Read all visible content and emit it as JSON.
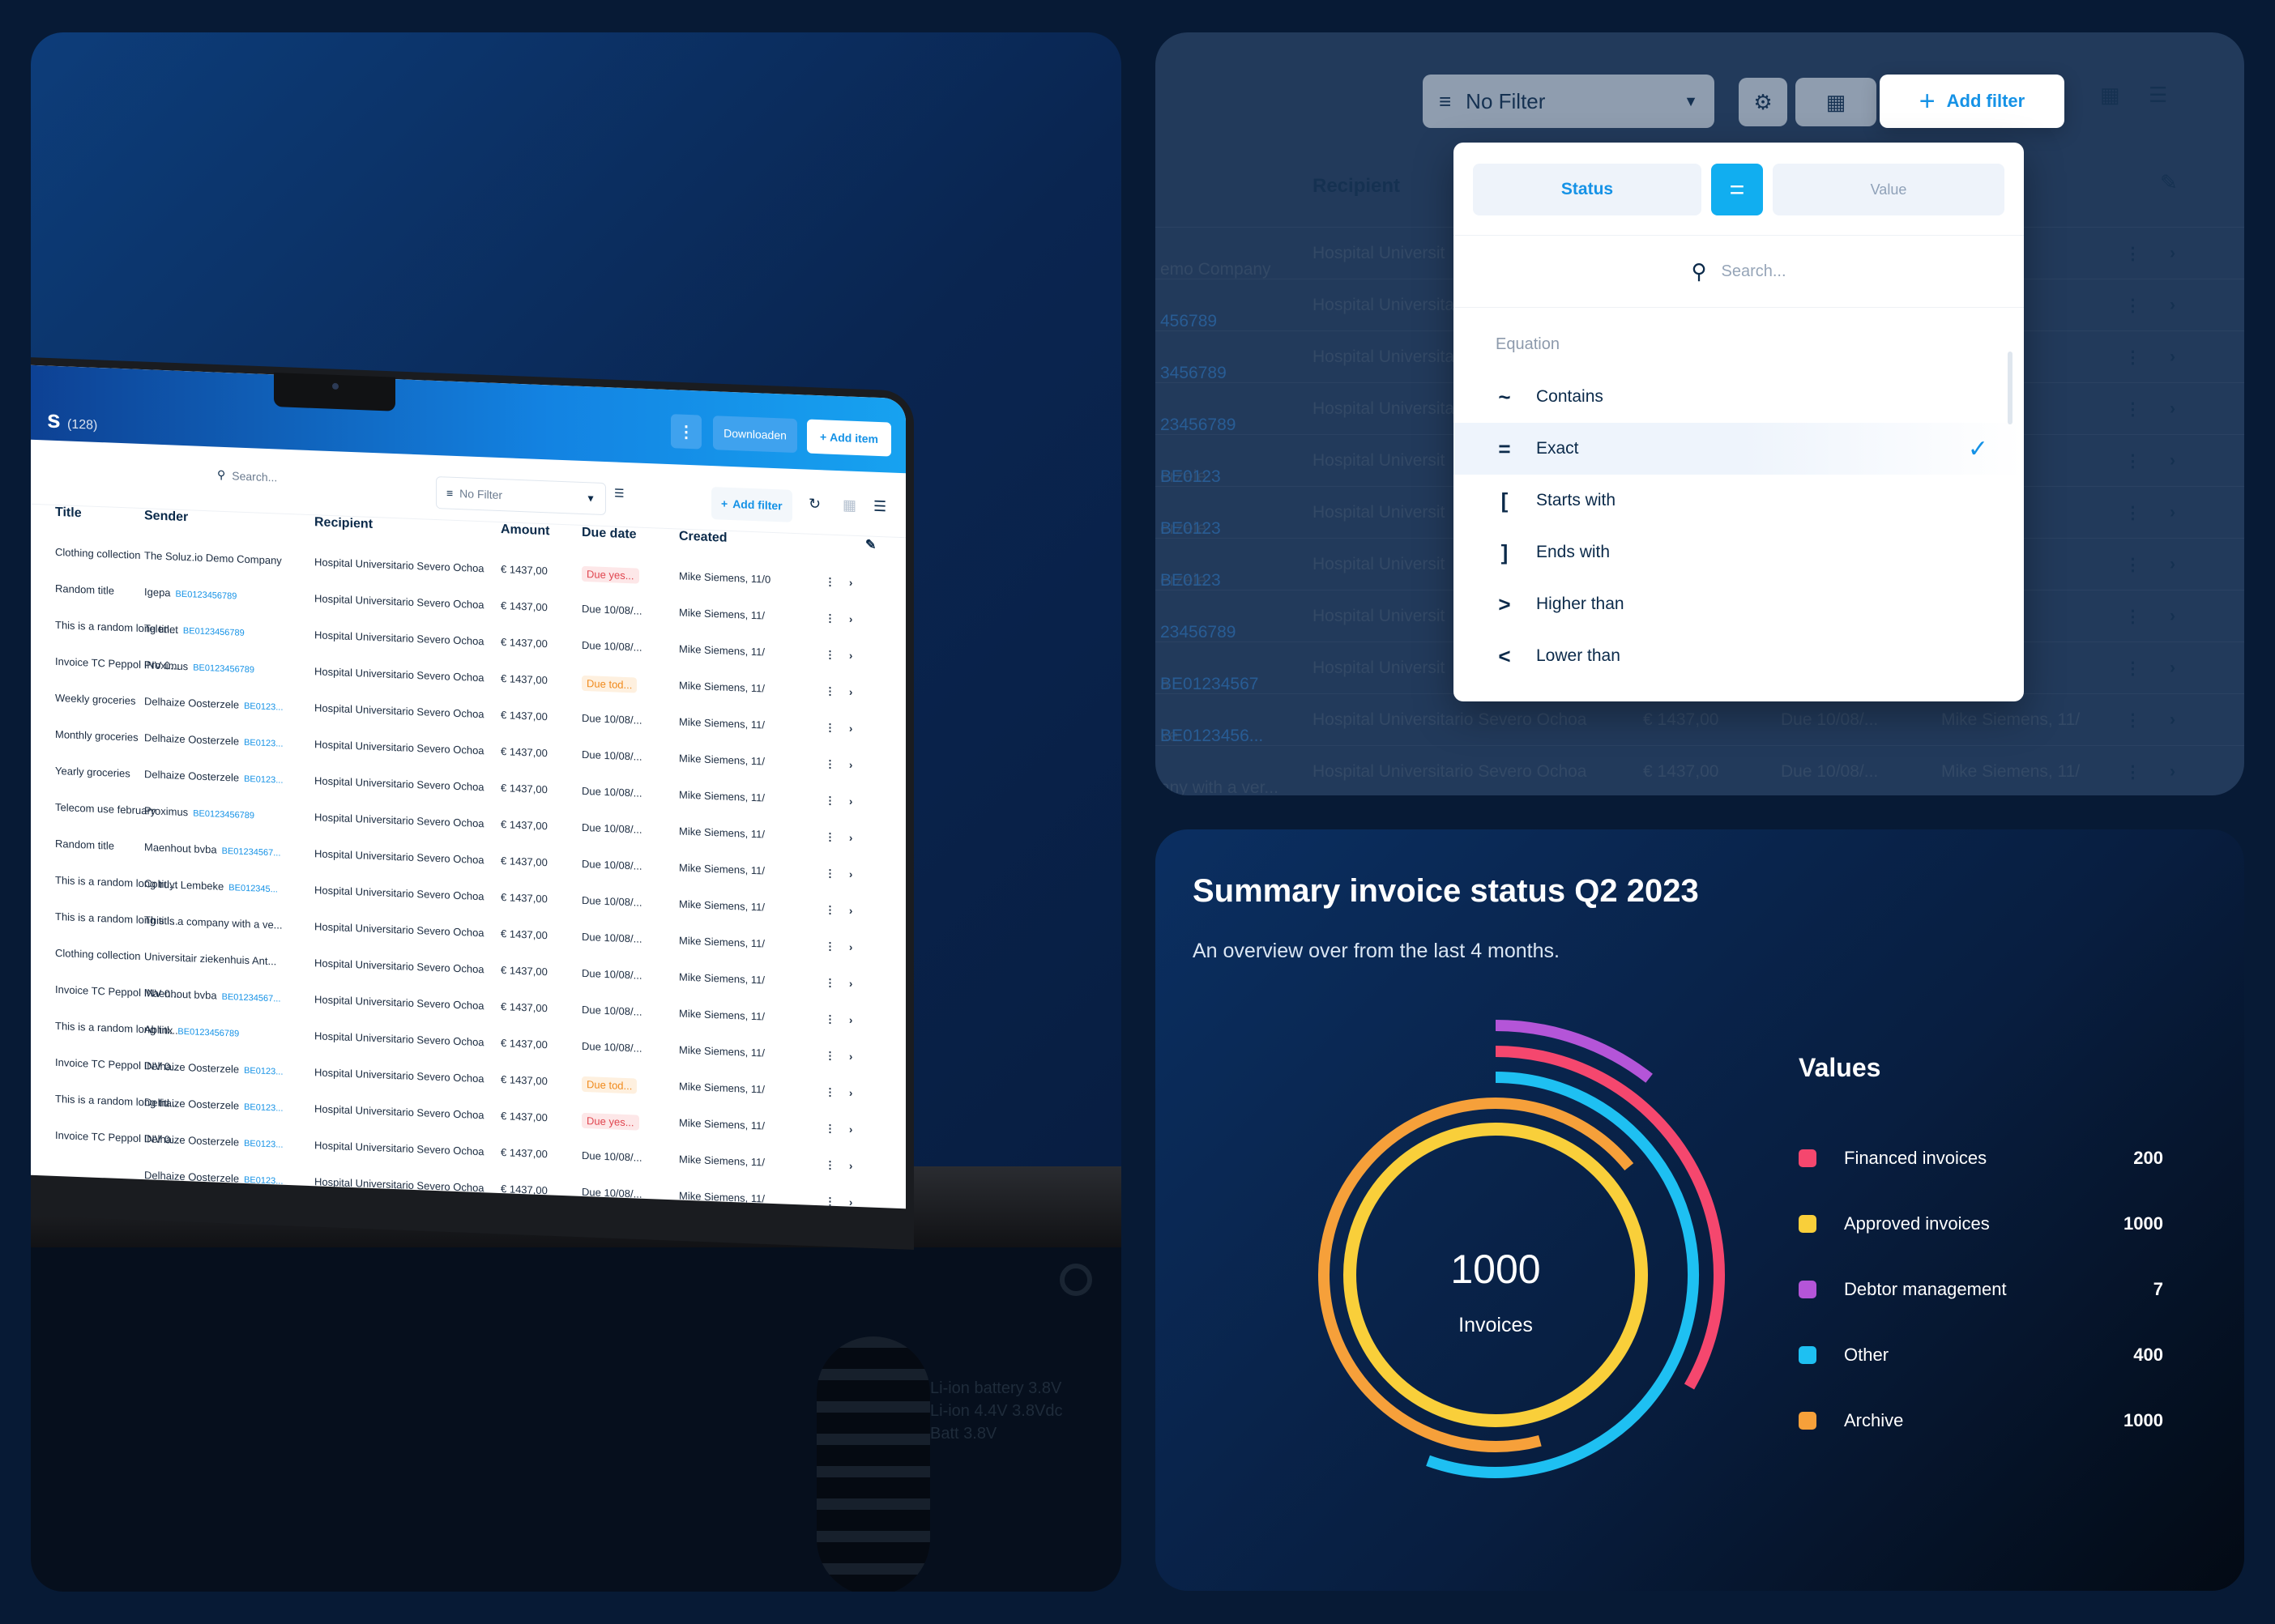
{
  "laptop": {
    "title": "s",
    "count": "(128)",
    "more_label": "⋮",
    "download_label": "Downloaden",
    "add_item_label": "Add item",
    "search_placeholder": "Search...",
    "filter_label": "No Filter",
    "add_filter_label": "Add filter",
    "columns": [
      "Title",
      "Sender",
      "Recipient",
      "Amount",
      "Due date",
      "Created"
    ],
    "rows": [
      {
        "title": "Clothing collection",
        "sender": "The Soluz.io Demo Company",
        "ref": "",
        "recipient": "Hospital Universitario Severo Ochoa",
        "amount": "€ 1437,00",
        "due": "Due yes...",
        "due_style": "red",
        "created": "Mike Siemens, 11/0"
      },
      {
        "title": "Random title",
        "sender": "Igepa",
        "ref": "BE0123456789",
        "recipient": "Hospital Universitario Severo Ochoa",
        "amount": "€ 1437,00",
        "due": "Due 10/08/...",
        "due_style": "",
        "created": "Mike Siemens, 11/"
      },
      {
        "title": "This is a random long titl...",
        "sender": "Telenet",
        "ref": "BE0123456789",
        "recipient": "Hospital Universitario Severo Ochoa",
        "amount": "€ 1437,00",
        "due": "Due 10/08/...",
        "due_style": "",
        "created": "Mike Siemens, 11/"
      },
      {
        "title": "Invoice TC Peppol INV 0...",
        "sender": "Proximus",
        "ref": "BE0123456789",
        "recipient": "Hospital Universitario Severo Ochoa",
        "amount": "€ 1437,00",
        "due": "Due tod...",
        "due_style": "orange",
        "created": "Mike Siemens, 11/"
      },
      {
        "title": "Weekly groceries",
        "sender": "Delhaize Oosterzele",
        "ref": "BE0123...",
        "recipient": "Hospital Universitario Severo Ochoa",
        "amount": "€ 1437,00",
        "due": "Due 10/08/...",
        "due_style": "",
        "created": "Mike Siemens, 11/"
      },
      {
        "title": "Monthly groceries",
        "sender": "Delhaize Oosterzele",
        "ref": "BE0123...",
        "recipient": "Hospital Universitario Severo Ochoa",
        "amount": "€ 1437,00",
        "due": "Due 10/08/...",
        "due_style": "",
        "created": "Mike Siemens, 11/"
      },
      {
        "title": "Yearly groceries",
        "sender": "Delhaize Oosterzele",
        "ref": "BE0123...",
        "recipient": "Hospital Universitario Severo Ochoa",
        "amount": "€ 1437,00",
        "due": "Due 10/08/...",
        "due_style": "",
        "created": "Mike Siemens, 11/"
      },
      {
        "title": "Telecom use february",
        "sender": "Proximus",
        "ref": "BE0123456789",
        "recipient": "Hospital Universitario Severo Ochoa",
        "amount": "€ 1437,00",
        "due": "Due 10/08/...",
        "due_style": "",
        "created": "Mike Siemens, 11/"
      },
      {
        "title": "Random title",
        "sender": "Maenhout bvba",
        "ref": "BE01234567...",
        "recipient": "Hospital Universitario Severo Ochoa",
        "amount": "€ 1437,00",
        "due": "Due 10/08/...",
        "due_style": "",
        "created": "Mike Siemens, 11/"
      },
      {
        "title": "This is a random long titl...",
        "sender": "Colruyt Lembeke",
        "ref": "BE012345...",
        "recipient": "Hospital Universitario Severo Ochoa",
        "amount": "€ 1437,00",
        "due": "Due 10/08/...",
        "due_style": "",
        "created": "Mike Siemens, 11/"
      },
      {
        "title": "This is a random long titl...",
        "sender": "This is a company with a ve...",
        "ref": "",
        "recipient": "Hospital Universitario Severo Ochoa",
        "amount": "€ 1437,00",
        "due": "Due 10/08/...",
        "due_style": "",
        "created": "Mike Siemens, 11/"
      },
      {
        "title": "Clothing collection",
        "sender": "Universitair ziekenhuis Ant...",
        "ref": "",
        "recipient": "Hospital Universitario Severo Ochoa",
        "amount": "€ 1437,00",
        "due": "Due 10/08/...",
        "due_style": "",
        "created": "Mike Siemens, 11/"
      },
      {
        "title": "Invoice TC Peppol INV 0...",
        "sender": "Maenhout bvba",
        "ref": "BE01234567...",
        "recipient": "Hospital Universitario Severo Ochoa",
        "amount": "€ 1437,00",
        "due": "Due 10/08/...",
        "due_style": "",
        "created": "Mike Siemens, 11/"
      },
      {
        "title": "This is a random long titl...",
        "sender": "Ablinx",
        "ref": "BE0123456789",
        "recipient": "Hospital Universitario Severo Ochoa",
        "amount": "€ 1437,00",
        "due": "Due 10/08/...",
        "due_style": "",
        "created": "Mike Siemens, 11/"
      },
      {
        "title": "Invoice TC Peppol INV 0...",
        "sender": "Delhaize Oosterzele",
        "ref": "BE0123...",
        "recipient": "Hospital Universitario Severo Ochoa",
        "amount": "€ 1437,00",
        "due": "Due tod...",
        "due_style": "orange",
        "created": "Mike Siemens, 11/"
      },
      {
        "title": "This is a random long titl...",
        "sender": "Delhaize Oosterzele",
        "ref": "BE0123...",
        "recipient": "Hospital Universitario Severo Ochoa",
        "amount": "€ 1437,00",
        "due": "Due yes...",
        "due_style": "red",
        "created": "Mike Siemens, 11/"
      },
      {
        "title": "Invoice TC Peppol INV 0...",
        "sender": "Delhaize Oosterzele",
        "ref": "BE0123...",
        "recipient": "Hospital Universitario Severo Ochoa",
        "amount": "€ 1437,00",
        "due": "Due 10/08/...",
        "due_style": "",
        "created": "Mike Siemens, 11/"
      },
      {
        "title": "",
        "sender": "Delhaize Oosterzele",
        "ref": "BE0123...",
        "recipient": "Hospital Universitario Severo Ochoa",
        "amount": "€ 1437,00",
        "due": "Due 10/08/...",
        "due_style": "",
        "created": "Mike Siemens, 11/"
      }
    ],
    "device_label_lines": [
      "Li-ion battery  3.8V",
      "Li-ion 4.4V  3.8Vdc",
      "Batt  3.8V"
    ]
  },
  "filter_panel": {
    "no_filter_label": "No Filter",
    "add_filter_label": "Add filter",
    "recipient_header": "Recipient",
    "rows": [
      {
        "left": "emo Company",
        "ref": "",
        "recipient": "Hospital Universit",
        "amount": "",
        "due": "",
        "created": "s, 11/"
      },
      {
        "left": "",
        "ref": "456789",
        "recipient": "Hospital Universita",
        "amount": "",
        "due": "",
        "created": ""
      },
      {
        "left": "",
        "ref": "3456789",
        "recipient": "Hospital Universita",
        "amount": "",
        "due": "",
        "created": ""
      },
      {
        "left": "",
        "ref": "23456789",
        "recipient": "Hospital Universita",
        "amount": "",
        "due": "",
        "created": ""
      },
      {
        "left": "erzele",
        "ref": "BE0123",
        "recipient": "Hospital Universit",
        "amount": "",
        "due": "",
        "created": ""
      },
      {
        "left": "erzele",
        "ref": "BE0123",
        "recipient": "Hospital Universit",
        "amount": "",
        "due": "",
        "created": ""
      },
      {
        "left": "erzele",
        "ref": "BE0123",
        "recipient": "Hospital Universit",
        "amount": "",
        "due": "",
        "created": ""
      },
      {
        "left": "",
        "ref": "23456789",
        "recipient": "Hospital Universit",
        "amount": "",
        "due": "",
        "created": ""
      },
      {
        "left": "a",
        "ref": "BE01234567",
        "recipient": "Hospital Universit",
        "amount": "",
        "due": "",
        "created": ""
      },
      {
        "left": "ke",
        "ref": "BE0123456...",
        "recipient": "Hospital Universitario Severo Ochoa",
        "amount": "€ 1437,00",
        "due": "Due 10/08/...",
        "created": "Mike Siemens, 11/"
      },
      {
        "left": "any with a ver...",
        "ref": "",
        "recipient": "Hospital Universitario Severo Ochoa",
        "amount": "€ 1437,00",
        "due": "Due 10/08/...",
        "created": "Mike Siemens, 11/"
      }
    ],
    "popup": {
      "field_label": "Status",
      "operator_label": "=",
      "value_placeholder": "Value",
      "search_placeholder": "Search...",
      "section_label": "Equation",
      "options": [
        {
          "symbol": "~",
          "label": "Contains",
          "selected": false
        },
        {
          "symbol": "=",
          "label": "Exact",
          "selected": true
        },
        {
          "symbol": "[",
          "label": "Starts with",
          "selected": false
        },
        {
          "symbol": "]",
          "label": "Ends with",
          "selected": false
        },
        {
          "symbol": ">",
          "label": "Higher than",
          "selected": false
        },
        {
          "symbol": "<",
          "label": "Lower than",
          "selected": false
        }
      ]
    }
  },
  "summary": {
    "title": "Summary invoice status Q2 2023",
    "subtitle": "An overview over from the last 4 months.",
    "center_value": "1000",
    "center_label": "Invoices",
    "legend_title": "Values"
  },
  "chart_data": {
    "type": "radial-bar",
    "title": "Summary invoice status Q2 2023",
    "series": [
      {
        "name": "Financed invoices",
        "value": 200,
        "color": "#f5476e"
      },
      {
        "name": "Approved invoices",
        "value": 1000,
        "color": "#f9cf3a"
      },
      {
        "name": "Debtor management",
        "value": 7,
        "color": "#b455d8"
      },
      {
        "name": "Other",
        "value": 400,
        "color": "#1ec0f2"
      },
      {
        "name": "Archive",
        "value": 1000,
        "color": "#f6a03a"
      }
    ],
    "rings": [
      {
        "name": "Approved invoices",
        "fraction": 1.0
      },
      {
        "name": "Archive",
        "fraction": 0.78
      },
      {
        "name": "Other",
        "fraction": 0.63
      },
      {
        "name": "Financed invoices",
        "fraction": 0.5
      },
      {
        "name": "Debtor management",
        "fraction": 0.29
      }
    ]
  }
}
